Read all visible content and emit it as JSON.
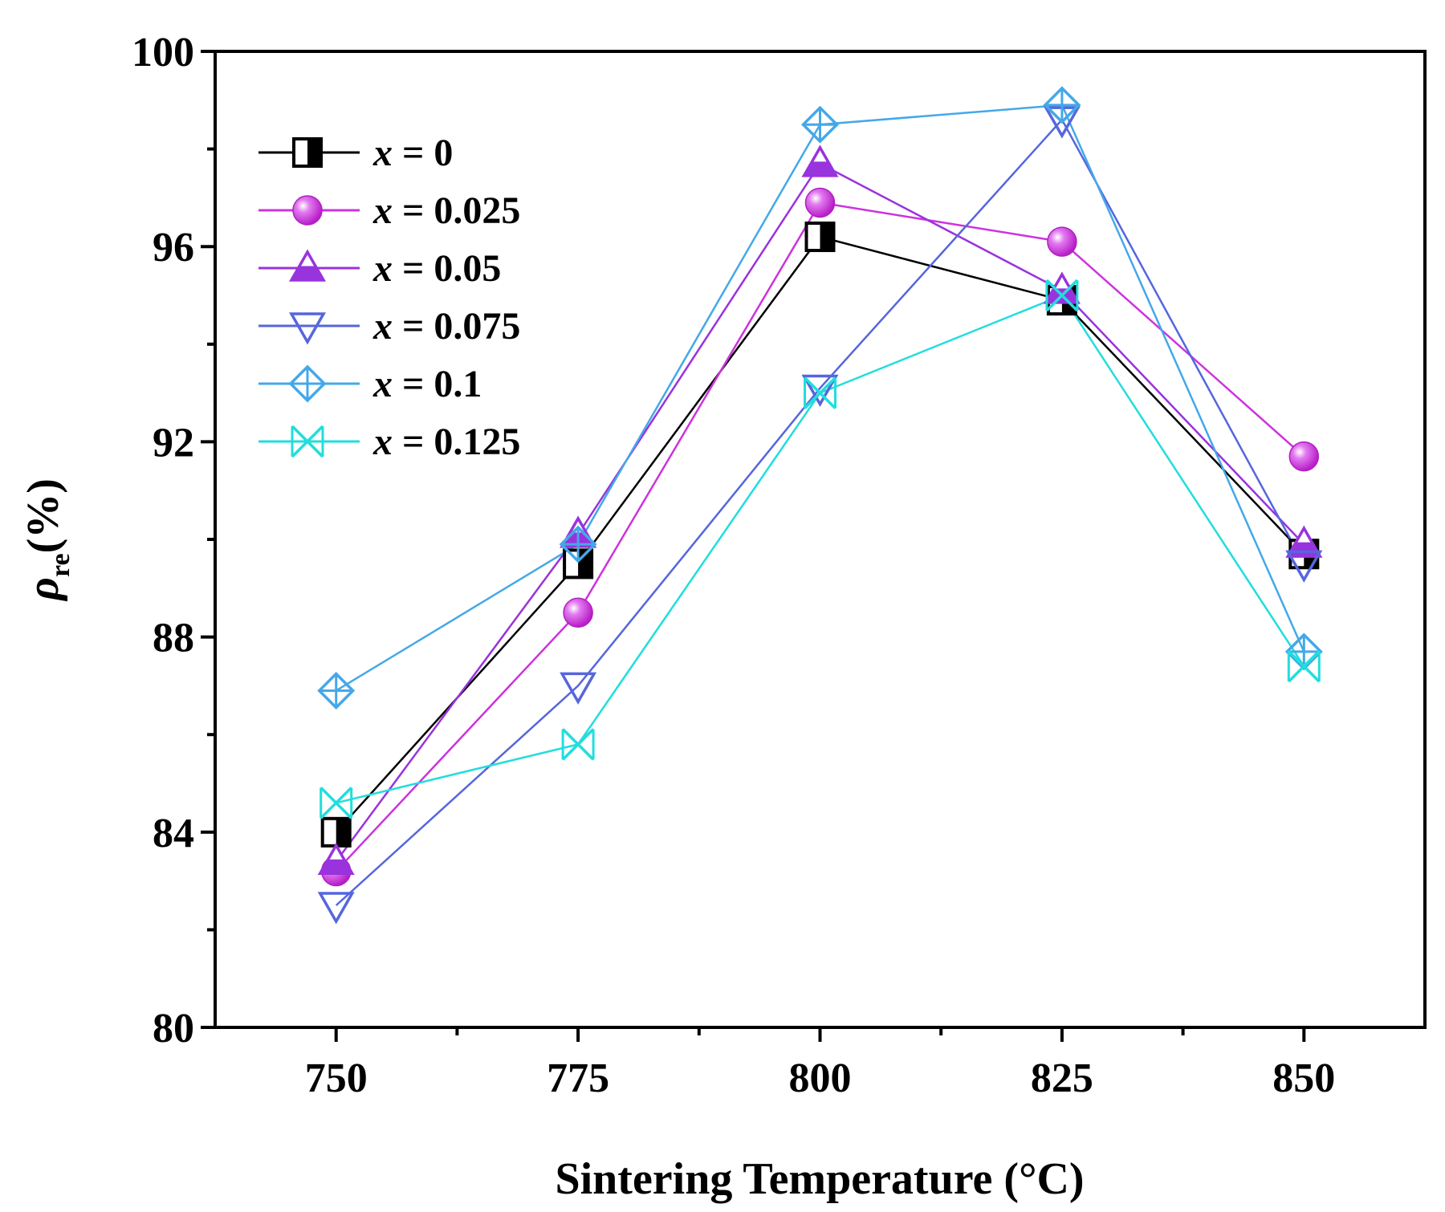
{
  "chart_data": {
    "type": "line",
    "xlabel": "Sintering Temperature (°C)",
    "ylabel": {
      "symbol": "ρ",
      "subscript": "re",
      "unit": "(%)"
    },
    "x": [
      750,
      775,
      800,
      825,
      850
    ],
    "x_ticks": [
      "750",
      "775",
      "800",
      "825",
      "850"
    ],
    "xlim": [
      737.5,
      862.5
    ],
    "ylim": [
      80,
      100
    ],
    "y_ticks": [
      "80",
      "84",
      "88",
      "92",
      "96",
      "100"
    ],
    "y_tick_values": [
      80,
      84,
      88,
      92,
      96,
      100
    ],
    "grid": false,
    "legend_position": "top-left",
    "series": [
      {
        "var": "x",
        "eq": " = 0",
        "name": "x = 0",
        "color": "#000000",
        "marker": "half-square",
        "values": [
          84.0,
          89.5,
          96.2,
          94.9,
          89.7
        ]
      },
      {
        "var": "x",
        "eq": " = 0.025",
        "name": "x = 0.025",
        "color": "#cc33dd",
        "marker": "sphere",
        "values": [
          83.2,
          88.5,
          96.9,
          96.1,
          91.7
        ]
      },
      {
        "var": "x",
        "eq": " = 0.05",
        "name": "x = 0.05",
        "color": "#9933dd",
        "marker": "triangle-up-half",
        "values": [
          83.4,
          90.1,
          97.7,
          95.1,
          89.9
        ]
      },
      {
        "var": "x",
        "eq": " = 0.075",
        "name": "x = 0.075",
        "color": "#5566dd",
        "marker": "triangle-down",
        "values": [
          82.5,
          87.0,
          93.1,
          98.6,
          89.5
        ]
      },
      {
        "var": "x",
        "eq": " = 0.1",
        "name": "x = 0.1",
        "color": "#44a8e8",
        "marker": "diamond-cross",
        "values": [
          86.9,
          89.9,
          98.5,
          98.9,
          87.7
        ]
      },
      {
        "var": "x",
        "eq": " = 0.125",
        "name": "x = 0.125",
        "color": "#22dddd",
        "marker": "x-cross",
        "values": [
          84.6,
          85.8,
          93.0,
          95.0,
          87.4
        ]
      }
    ]
  }
}
